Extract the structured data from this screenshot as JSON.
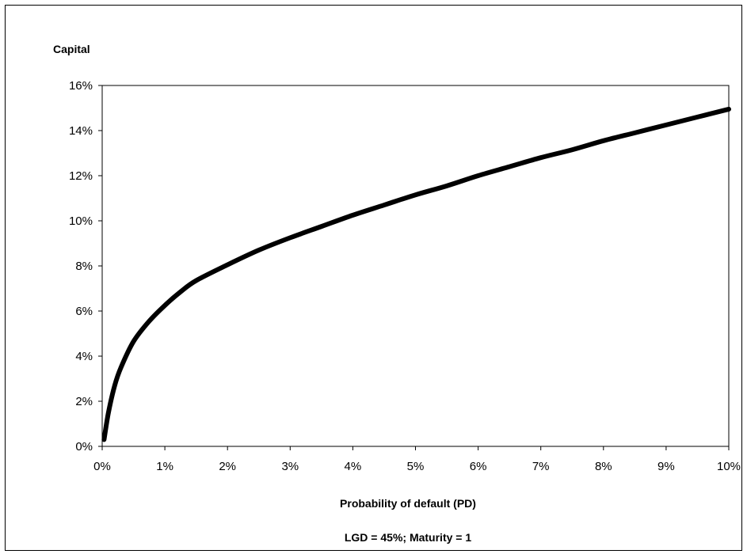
{
  "chart_data": {
    "type": "line",
    "title": "",
    "ylabel": "Capital",
    "xlabel": "Probability of default  (PD)",
    "subtitle": "LGD = 45%;  Maturity = 1",
    "xlim": [
      0,
      10
    ],
    "ylim": [
      0,
      16
    ],
    "x_ticks": [
      "0%",
      "1%",
      "2%",
      "3%",
      "4%",
      "5%",
      "6%",
      "7%",
      "8%",
      "9%",
      "10%"
    ],
    "y_ticks": [
      "0%",
      "2%",
      "4%",
      "6%",
      "8%",
      "10%",
      "12%",
      "14%",
      "16%"
    ],
    "grid": false,
    "legend": "none",
    "series": [
      {
        "color": "#000000",
        "x": [
          0.03,
          0.1,
          0.2,
          0.3,
          0.5,
          0.75,
          1.0,
          1.25,
          1.5,
          2.0,
          2.5,
          3.0,
          3.5,
          4.0,
          4.5,
          5.0,
          5.5,
          6.0,
          6.5,
          7.0,
          7.5,
          8.0,
          8.5,
          9.0,
          9.5,
          10.0
        ],
        "y": [
          0.3,
          1.5,
          2.7,
          3.5,
          4.65,
          5.55,
          6.25,
          6.85,
          7.35,
          8.05,
          8.7,
          9.25,
          9.75,
          10.25,
          10.7,
          11.15,
          11.55,
          12.0,
          12.4,
          12.8,
          13.15,
          13.55,
          13.9,
          14.25,
          14.6,
          14.95
        ]
      }
    ]
  }
}
